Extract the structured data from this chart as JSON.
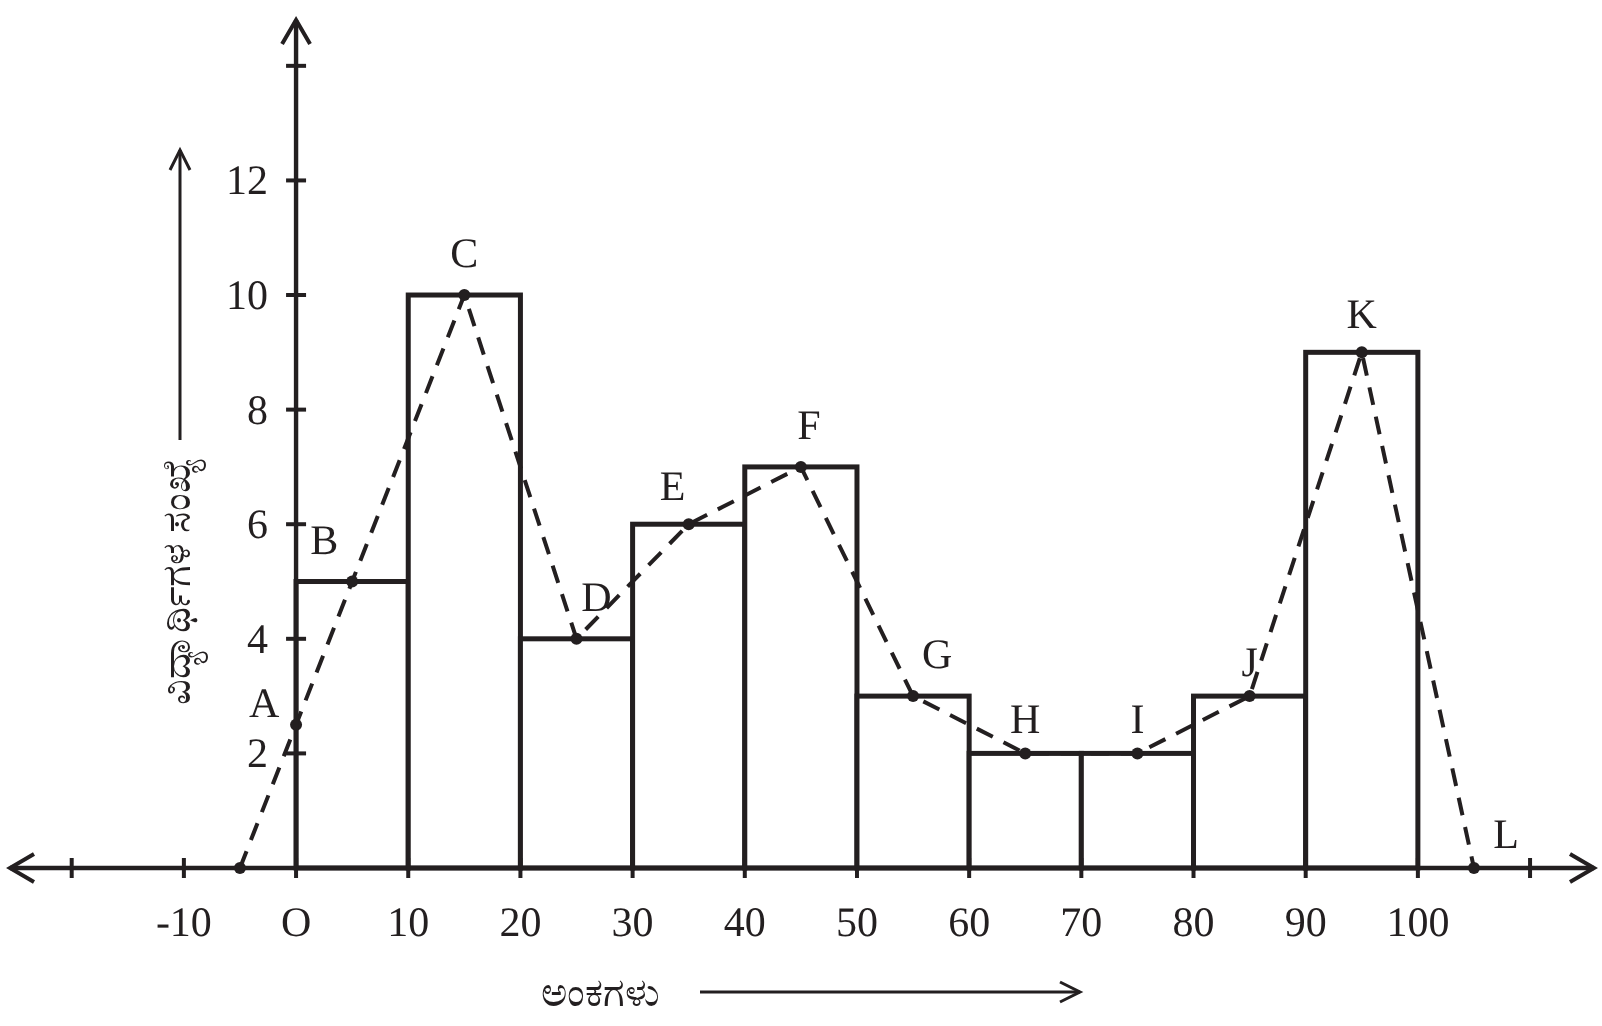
{
  "chart_data": {
    "type": "histogram",
    "xlabel": "ಅಂಕಗಳು",
    "ylabel": "ವಿದ್ಯಾರ್ಥಿಗಳ ಸಂಖ್ಯೆ",
    "bins": [
      0,
      10,
      20,
      30,
      40,
      50,
      60,
      70,
      80,
      90,
      100
    ],
    "values": [
      5,
      10,
      4,
      6,
      7,
      3,
      2,
      2,
      3,
      9
    ],
    "color": "#231f20",
    "series": [
      {
        "type": "line",
        "x": [
          -5,
          0,
          5,
          15,
          25,
          35,
          45,
          55,
          65,
          75,
          85,
          95,
          105
        ],
        "values": [
          0,
          2.5,
          5,
          10,
          4,
          6,
          7,
          3,
          2,
          2,
          3,
          9,
          0
        ],
        "color": "#231f20",
        "line_style": "dashed",
        "marker": "circle"
      }
    ],
    "xlim": [
      -25.5,
      115.7
    ],
    "ylim": [
      0,
      14.8
    ],
    "xticks": [
      {
        "value": -20,
        "label": null
      },
      -10,
      {
        "value": 0,
        "label": "O"
      },
      10,
      20,
      30,
      40,
      50,
      60,
      70,
      80,
      90,
      100,
      {
        "value": 110,
        "label": null
      }
    ],
    "yticks": [
      2,
      4,
      6,
      8,
      10,
      12,
      {
        "value": 14,
        "label": null
      }
    ],
    "grid": false,
    "annotations": [
      {
        "text": "A",
        "x": 0,
        "y": 2.5
      },
      {
        "text": "B",
        "x": 5,
        "y": 5
      },
      {
        "text": "C",
        "x": 15,
        "y": 10
      },
      {
        "text": "D",
        "x": 25,
        "y": 4
      },
      {
        "text": "E",
        "x": 35,
        "y": 6
      },
      {
        "text": "F",
        "x": 45,
        "y": 7
      },
      {
        "text": "G",
        "x": 55,
        "y": 3
      },
      {
        "text": "H",
        "x": 65,
        "y": 2
      },
      {
        "text": "I",
        "x": 75,
        "y": 2
      },
      {
        "text": "J",
        "x": 85,
        "y": 3
      },
      {
        "text": "K",
        "x": 95,
        "y": 9
      },
      {
        "text": "L",
        "x": 105,
        "y": 0
      }
    ]
  }
}
